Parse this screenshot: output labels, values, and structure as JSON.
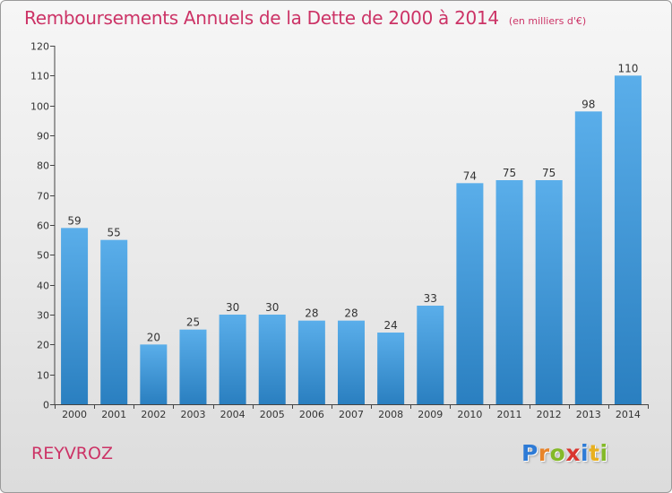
{
  "chart_data": {
    "type": "bar",
    "title": "Remboursements Annuels de la Dette de 2000 à 2014",
    "unit_note": "(en milliers d'€)",
    "xlabel": "",
    "ylabel": "",
    "categories": [
      "2000",
      "2001",
      "2002",
      "2003",
      "2004",
      "2005",
      "2006",
      "2007",
      "2008",
      "2009",
      "2010",
      "2011",
      "2012",
      "2013",
      "2014"
    ],
    "values": [
      59,
      55,
      20,
      25,
      30,
      30,
      28,
      28,
      24,
      33,
      74,
      75,
      75,
      98,
      110
    ],
    "ylim": [
      0,
      120
    ],
    "yticks": [
      0,
      10,
      20,
      30,
      40,
      50,
      60,
      70,
      80,
      90,
      100,
      110,
      120
    ],
    "grid": false,
    "bar_color_top": "#5aaeea",
    "bar_color_bottom": "#2a7fc0"
  },
  "commune": "REYVROZ",
  "brand": {
    "name": "Proxiti",
    "letters": [
      "P",
      "r",
      "o",
      "x",
      "i",
      "t",
      "i"
    ]
  },
  "colors": {
    "title": "#cc3366",
    "axis": "#333333"
  }
}
